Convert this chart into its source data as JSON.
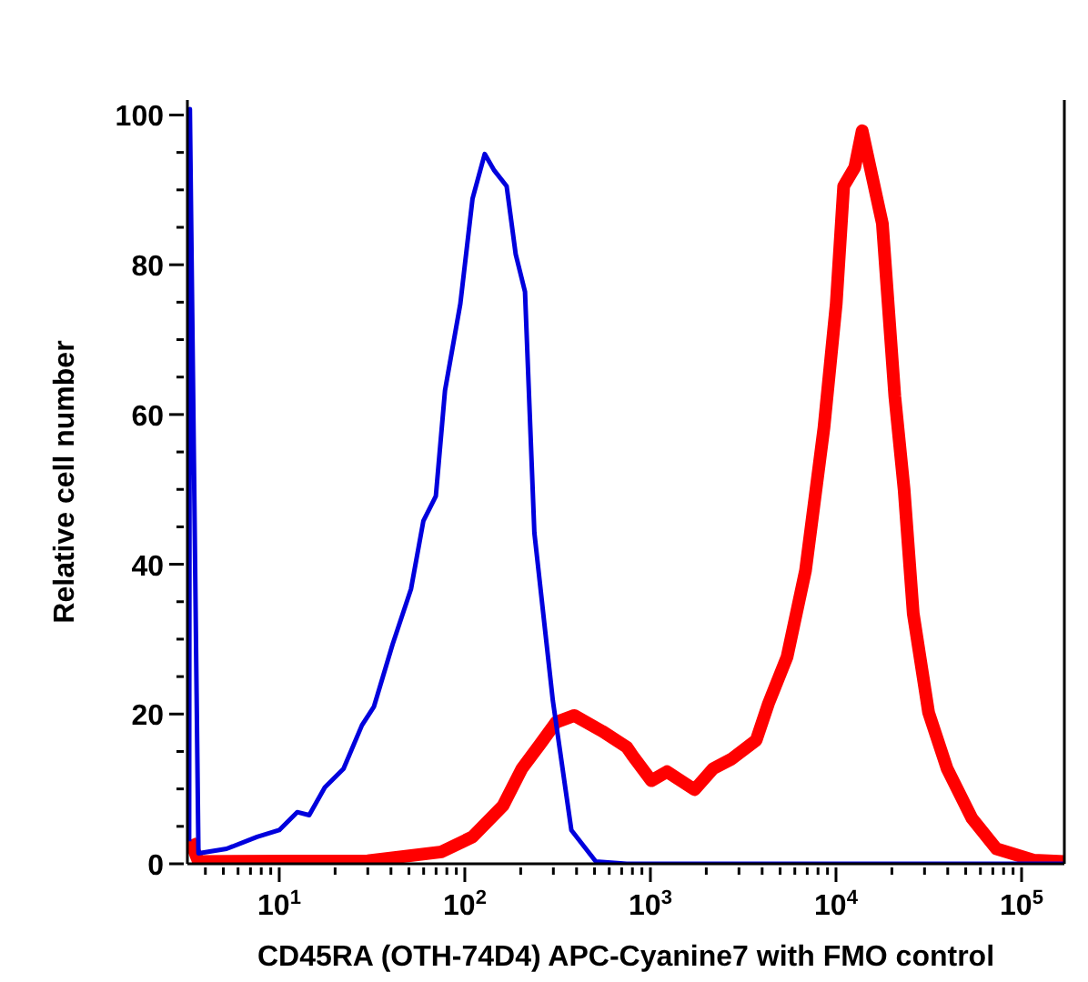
{
  "chart_data": {
    "type": "line",
    "xlabel": "CD45RA (OTH-74D4) APC-Cyanine7 with FMO control",
    "ylabel": "Relative cell number",
    "log": "x",
    "marker": "none",
    "line_style": "solid",
    "xlim": [
      3.2,
      170000
    ],
    "xticks": [
      {
        "value": 4,
        "label": null
      },
      {
        "value": 5,
        "label": null
      },
      {
        "value": 6,
        "label": null
      },
      {
        "value": 7,
        "label": null
      },
      {
        "value": 8,
        "label": null
      },
      {
        "value": 9,
        "label": null
      },
      {
        "value": 10,
        "label": "10$^{1}$"
      },
      {
        "value": 20,
        "label": null
      },
      {
        "value": 30,
        "label": null
      },
      {
        "value": 40,
        "label": null
      },
      {
        "value": 50,
        "label": null
      },
      {
        "value": 60,
        "label": null
      },
      {
        "value": 70,
        "label": null
      },
      {
        "value": 80,
        "label": null
      },
      {
        "value": 90,
        "label": null
      },
      {
        "value": 100,
        "label": "10$^{2}$"
      },
      {
        "value": 200,
        "label": null
      },
      {
        "value": 300,
        "label": null
      },
      {
        "value": 400,
        "label": null
      },
      {
        "value": 500,
        "label": null
      },
      {
        "value": 600,
        "label": null
      },
      {
        "value": 700,
        "label": null
      },
      {
        "value": 800,
        "label": null
      },
      {
        "value": 900,
        "label": null
      },
      {
        "value": 1000,
        "label": "10$^{3}$"
      },
      {
        "value": 2000,
        "label": null
      },
      {
        "value": 3000,
        "label": null
      },
      {
        "value": 4000,
        "label": null
      },
      {
        "value": 5000,
        "label": null
      },
      {
        "value": 6000,
        "label": null
      },
      {
        "value": 7000,
        "label": null
      },
      {
        "value": 8000,
        "label": null
      },
      {
        "value": 9000,
        "label": null
      },
      {
        "value": 10000,
        "label": "10$^{4}$"
      },
      {
        "value": 20000,
        "label": null
      },
      {
        "value": 30000,
        "label": null
      },
      {
        "value": 40000,
        "label": null
      },
      {
        "value": 50000,
        "label": null
      },
      {
        "value": 60000,
        "label": null
      },
      {
        "value": 70000,
        "label": null
      },
      {
        "value": 80000,
        "label": null
      },
      {
        "value": 90000,
        "label": null
      },
      {
        "value": 100000,
        "label": "10$^{5}$"
      }
    ],
    "ylim": [
      0,
      102
    ],
    "yticks": [
      0,
      {
        "value": 5,
        "label": null
      },
      {
        "value": 10,
        "label": null
      },
      {
        "value": 15,
        "label": null
      },
      20,
      {
        "value": 25,
        "label": null
      },
      {
        "value": 30,
        "label": null
      },
      {
        "value": 35,
        "label": null
      },
      40,
      {
        "value": 45,
        "label": null
      },
      {
        "value": 50,
        "label": null
      },
      {
        "value": 55,
        "label": null
      },
      60,
      {
        "value": 65,
        "label": null
      },
      {
        "value": 70,
        "label": null
      },
      {
        "value": 75,
        "label": null
      },
      80,
      {
        "value": 85,
        "label": null
      },
      {
        "value": 90,
        "label": null
      },
      {
        "value": 95,
        "label": null
      },
      100
    ],
    "series": [
      {
        "color": "#ff0000",
        "x": [
          3.3,
          3.67,
          30,
          75,
          110,
          161,
          203,
          255,
          310,
          389,
          550,
          745,
          804,
          1012,
          1227,
          1730,
          2177,
          2737,
          3715,
          4327,
          5445,
          6855,
          8610,
          10030,
          11000,
          12620,
          13840,
          15280,
          17780,
          20750,
          23280,
          26080,
          31550,
          39700,
          53950,
          73250,
          115900,
          170000
        ],
        "values": [
          3.2,
          0.3,
          0.4,
          1.6,
          3.6,
          7.8,
          12.7,
          16,
          18.9,
          19.8,
          17.7,
          15.6,
          14.4,
          11.1,
          12.3,
          9.9,
          12.7,
          14,
          16.5,
          21.4,
          27.6,
          39.2,
          58.2,
          74.8,
          90.5,
          93,
          97.9,
          93,
          85.5,
          62.4,
          50,
          33.4,
          20.2,
          12.7,
          6.1,
          2,
          0.5,
          0.3
        ]
      },
      {
        "color": "#0000dd",
        "x": [
          3.27,
          3.3,
          3.67,
          5.2,
          7.6,
          10,
          12.5,
          14.5,
          17.6,
          22.2,
          27.9,
          32.4,
          40.8,
          51.3,
          59.8,
          69.8,
          78.2,
          94.6,
          110,
          128,
          144,
          168,
          188,
          211,
          237,
          298,
          375,
          508,
          745,
          170000
        ],
        "values": [
          3,
          100.8,
          1.4,
          2,
          3.6,
          4.5,
          6.9,
          6.5,
          10.2,
          12.7,
          18.5,
          21,
          29.3,
          36.7,
          45.8,
          49.1,
          63.2,
          74.8,
          88.8,
          94.8,
          92.6,
          90.5,
          81.4,
          76.4,
          44.2,
          21.8,
          4.5,
          0.3,
          0,
          0
        ]
      }
    ]
  }
}
